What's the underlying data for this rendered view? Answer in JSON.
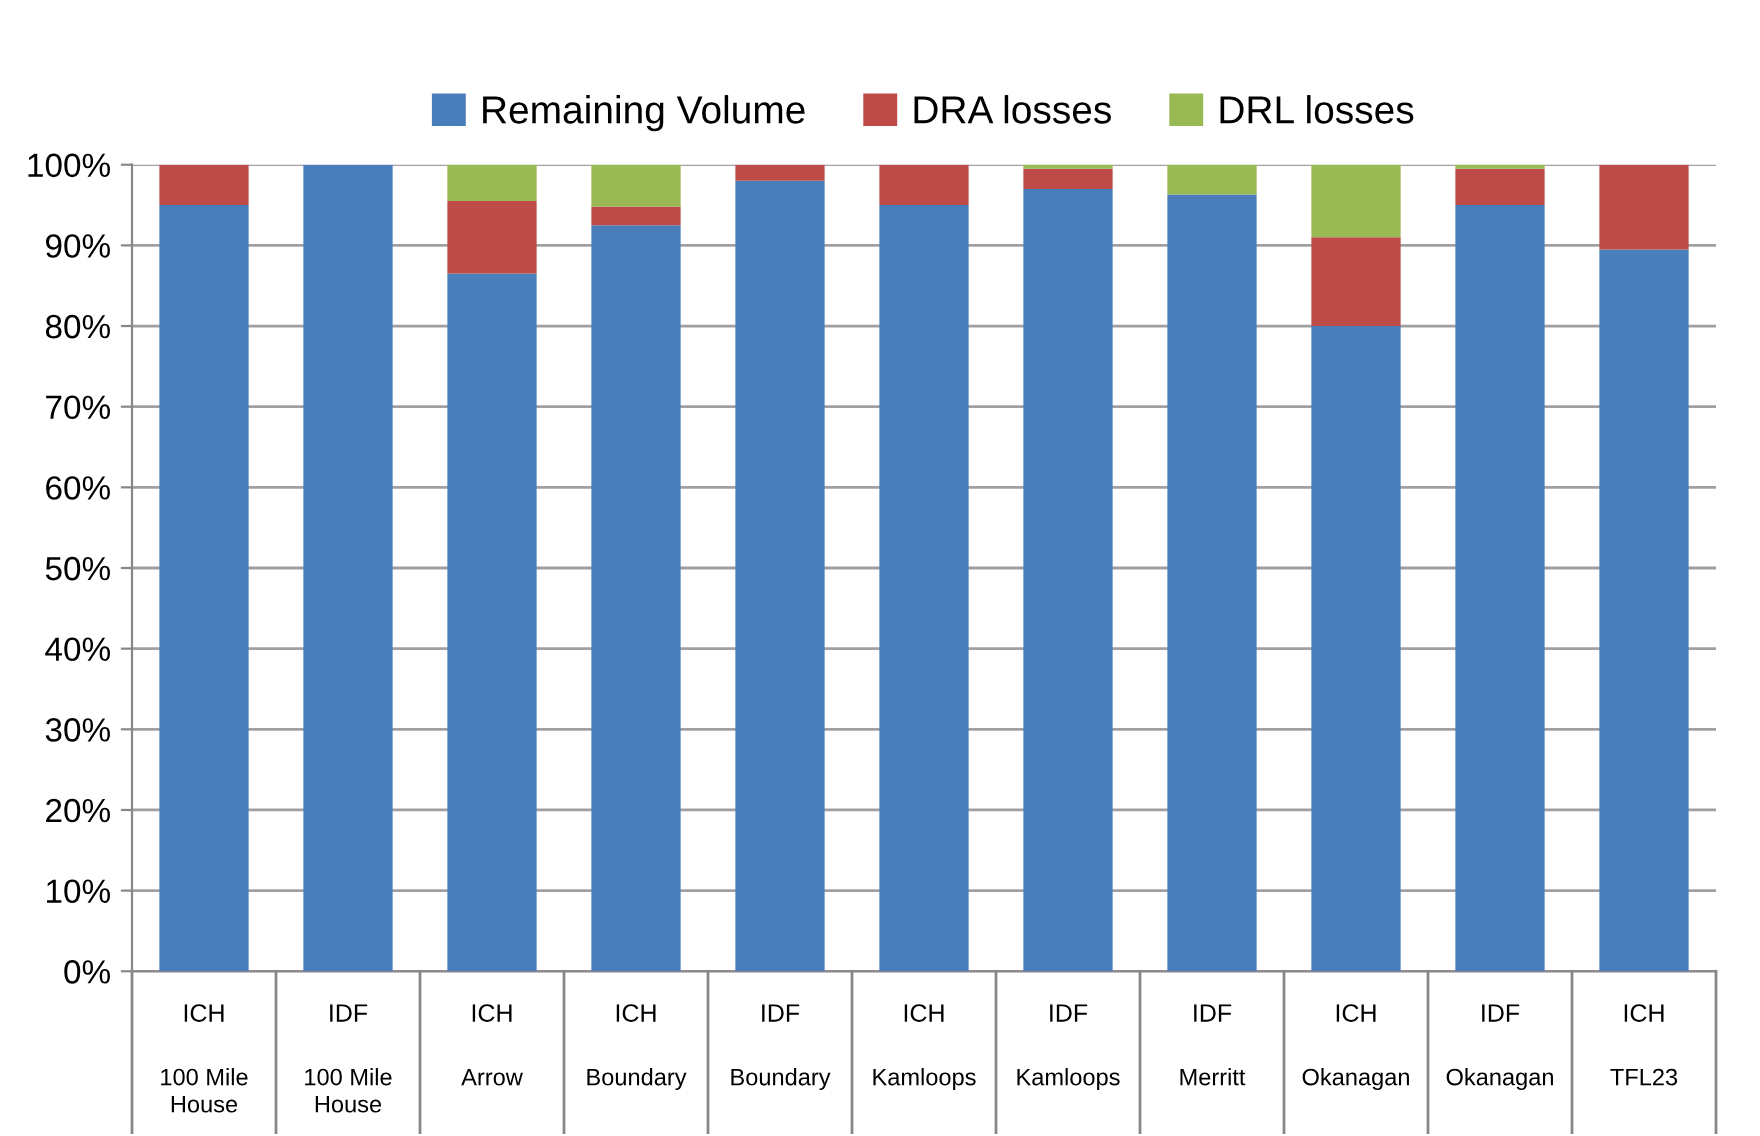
{
  "chart_data": {
    "type": "bar",
    "stacked": true,
    "categories": [
      "ICH\n100 Mile House",
      "IDF\n100 Mile House",
      "ICH\nArrow",
      "ICH\nBoundary",
      "IDF\nBoundary",
      "ICH\nKamloops",
      "IDF\nKamloops",
      "IDF\nMerritt",
      "ICH\nOkanagan",
      "IDF\nOkanagan",
      "ICH\nTFL23"
    ],
    "series": [
      {
        "name": "Remaining Volume",
        "color": "#4a7ebb",
        "values": [
          95,
          100,
          86.5,
          92.5,
          98,
          95,
          97,
          96.3,
          80,
          95,
          89.5
        ]
      },
      {
        "name": "DRA losses",
        "color": "#be4b48",
        "values": [
          5,
          0,
          9,
          2.3,
          2,
          5,
          2.5,
          0,
          11,
          4.5,
          10.5
        ]
      },
      {
        "name": "DRL losses",
        "color": "#98b954",
        "values": [
          0,
          0,
          4.5,
          5.2,
          0,
          0,
          0.5,
          3.7,
          9,
          0.5,
          0
        ]
      }
    ],
    "ylim": [
      0,
      100
    ],
    "yticks": [
      {
        "value": 0,
        "label": "0%"
      },
      {
        "value": 10,
        "label": "10%"
      },
      {
        "value": 20,
        "label": "20%"
      },
      {
        "value": 30,
        "label": "30%"
      },
      {
        "value": 40,
        "label": "40%"
      },
      {
        "value": 50,
        "label": "50%"
      },
      {
        "value": 60,
        "label": "60%"
      },
      {
        "value": 70,
        "label": "70%"
      },
      {
        "value": 80,
        "label": "80%"
      },
      {
        "value": 90,
        "label": "90%"
      },
      {
        "value": 100,
        "label": "100%"
      }
    ],
    "grid": "y",
    "legend": "top"
  }
}
